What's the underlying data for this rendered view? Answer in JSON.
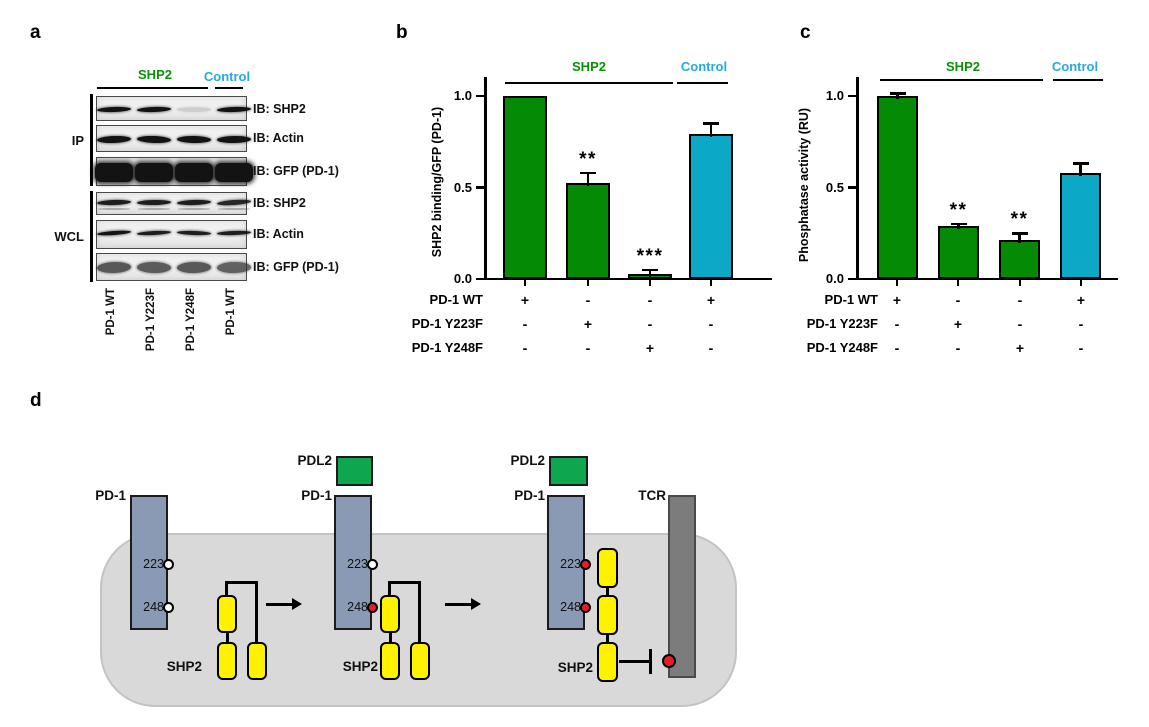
{
  "figure": {
    "panels": {
      "a": "a",
      "b": "b",
      "c": "c",
      "d": "d"
    }
  },
  "colors": {
    "bar_green": "#058A05",
    "bar_cyan": "#0BA9C7",
    "label_green": "#089105",
    "label_cyan": "#25AAE1",
    "pd1_blue": "#8A99B4",
    "pdl2_green": "#0EA64F",
    "tcr_gray": "#7C7C7C",
    "shp2_yellow": "#FFF200",
    "cell_gray": "#D9D9D9",
    "site_red": "#EC1C24",
    "site_white": "#FFFFFF"
  },
  "panel_a": {
    "group_shp2": "SHP2",
    "group_control": "Control",
    "ip_label": "IP",
    "wcl_label": "WCL",
    "blots": {
      "ip": [
        {
          "antibody": "IB: SHP2",
          "bands": [
            1,
            1,
            0.14,
            1
          ],
          "band_h": 5
        },
        {
          "antibody": "IB: Actin",
          "bands": [
            1,
            1,
            1,
            1
          ],
          "band_h": 7
        },
        {
          "antibody": "IB: GFP (PD-1)",
          "bands": [
            1,
            1,
            1,
            1
          ],
          "band_h": 19
        }
      ],
      "wcl": [
        {
          "antibody": "IB: SHP2",
          "bands": [
            0.95,
            0.95,
            0.95,
            0.9
          ],
          "band_h": 5
        },
        {
          "antibody": "IB: Actin",
          "bands": [
            1,
            0.95,
            0.95,
            0.95
          ],
          "band_h": 4
        },
        {
          "antibody": "IB: GFP (PD-1)",
          "bands": [
            0.8,
            0.78,
            0.8,
            0.75
          ],
          "band_h": 11
        }
      ]
    },
    "lanes": [
      "PD-1 WT",
      "PD-1 Y223F",
      "PD-1 Y248F",
      "PD-1 WT"
    ]
  },
  "chart_data": [
    {
      "type": "bar",
      "panel": "b",
      "title": "",
      "ylabel": "SHP2 binding/GFP (PD-1)",
      "xlabel": "",
      "ylim": [
        0,
        1.1
      ],
      "yticks": [
        "0.0",
        "0.5",
        "1.0"
      ],
      "ytick_values": [
        0,
        0.5,
        1.0
      ],
      "grid": false,
      "legend_position": "none",
      "categories": [
        "PD-1 WT + SHP2",
        "PD-1 Y223F + SHP2",
        "PD-1 Y248F + SHP2",
        "PD-1 WT + Control"
      ],
      "values": [
        1.0,
        0.525,
        0.03,
        0.79
      ],
      "errors": [
        0,
        0.055,
        0.02,
        0.06
      ],
      "significance": [
        "",
        "**",
        "***",
        ""
      ],
      "bar_colors": [
        "#058A05",
        "#058A05",
        "#058A05",
        "#0BA9C7"
      ],
      "groups": [
        {
          "label": "SHP2",
          "color": "#089105"
        },
        {
          "label": "Control",
          "color": "#25AAE1"
        }
      ],
      "condition_rows": [
        {
          "label": "PD-1 WT",
          "signs": [
            "+",
            "-",
            "-",
            "+"
          ]
        },
        {
          "label": "PD-1 Y223F",
          "signs": [
            "-",
            "+",
            "-",
            "-"
          ]
        },
        {
          "label": "PD-1 Y248F",
          "signs": [
            "-",
            "-",
            "+",
            "-"
          ]
        }
      ]
    },
    {
      "type": "bar",
      "panel": "c",
      "title": "",
      "ylabel": "Phosphatase activity (RU)",
      "xlabel": "",
      "ylim": [
        0,
        1.1
      ],
      "yticks": [
        "0.0",
        "0.5",
        "1.0"
      ],
      "ytick_values": [
        0,
        0.5,
        1.0
      ],
      "grid": false,
      "legend_position": "none",
      "categories": [
        "PD-1 WT + SHP2",
        "PD-1 Y223F + SHP2",
        "PD-1 Y248F + SHP2",
        "PD-1 WT + Control"
      ],
      "values": [
        1.0,
        0.29,
        0.215,
        0.58
      ],
      "errors": [
        0.015,
        0.01,
        0.035,
        0.05
      ],
      "significance": [
        "",
        "**",
        "**",
        ""
      ],
      "bar_colors": [
        "#058A05",
        "#058A05",
        "#058A05",
        "#0BA9C7"
      ],
      "groups": [
        {
          "label": "SHP2",
          "color": "#089105"
        },
        {
          "label": "Control",
          "color": "#25AAE1"
        }
      ],
      "condition_rows": [
        {
          "label": "PD-1 WT",
          "signs": [
            "+",
            "-",
            "-",
            "+"
          ]
        },
        {
          "label": "PD-1 Y223F",
          "signs": [
            "-",
            "+",
            "-",
            "-"
          ]
        },
        {
          "label": "PD-1 Y248F",
          "signs": [
            "-",
            "-",
            "+",
            "-"
          ]
        }
      ]
    }
  ],
  "panel_d": {
    "stages": [
      {
        "receptor": "PD-1",
        "site1": "223",
        "site2": "248",
        "enzyme": "SHP2"
      },
      {
        "ligand": "PDL2",
        "receptor": "PD-1",
        "site1": "223",
        "site2": "248",
        "enzyme": "SHP2"
      },
      {
        "ligand": "PDL2",
        "receptor": "PD-1",
        "site1": "223",
        "site2": "248",
        "enzyme": "SHP2",
        "target": "TCR"
      }
    ]
  }
}
